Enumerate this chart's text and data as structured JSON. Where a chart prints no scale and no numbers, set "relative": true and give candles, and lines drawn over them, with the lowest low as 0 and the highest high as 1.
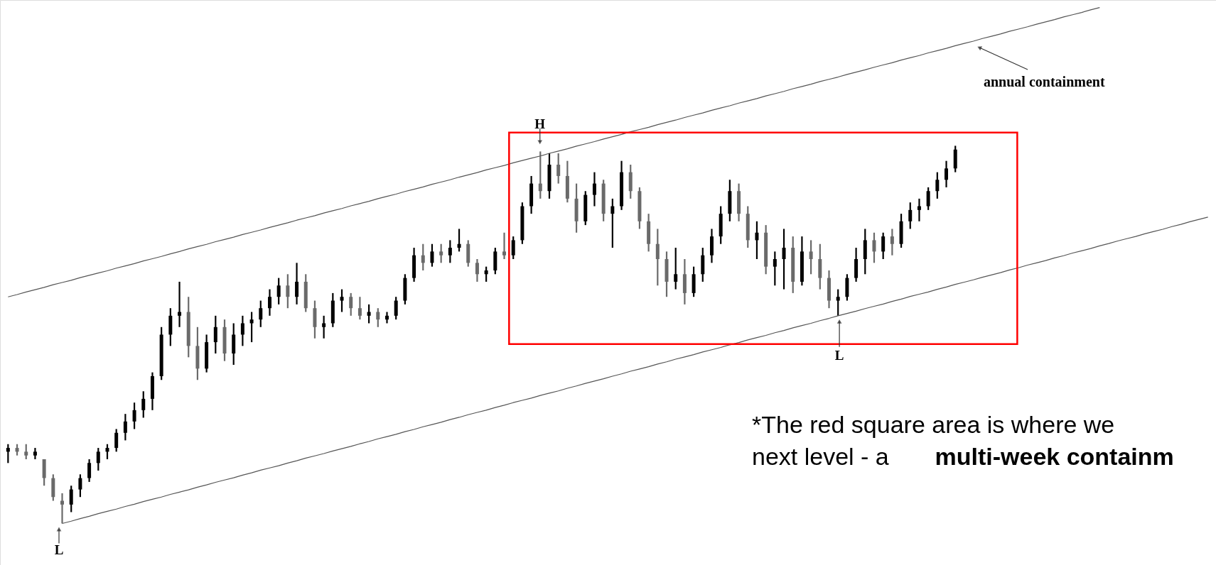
{
  "chart_data": {
    "type": "candlestick",
    "relative": true,
    "categories": [
      null,
      null,
      null,
      null,
      null,
      null,
      null,
      null,
      null,
      null,
      null,
      null,
      null,
      null,
      null,
      null,
      null,
      null,
      null,
      null,
      null,
      null,
      null,
      null,
      null,
      null,
      null,
      null,
      null,
      null,
      null,
      null,
      null,
      null,
      null,
      null,
      null,
      null,
      null,
      null,
      null,
      null,
      null,
      null,
      null,
      null,
      null,
      null,
      null,
      null,
      null,
      null,
      null,
      null,
      null,
      null,
      null,
      null,
      null,
      null,
      null,
      null,
      null,
      null,
      null,
      null,
      null,
      null,
      null,
      null,
      null,
      null,
      null,
      null,
      null,
      null,
      null,
      null,
      null,
      null,
      null,
      null,
      null,
      null,
      null,
      null,
      null,
      null,
      null,
      null,
      null,
      null,
      null,
      null,
      null,
      null,
      null,
      null,
      null,
      null,
      null,
      null,
      null,
      null,
      null,
      null,
      null,
      null,
      null,
      null,
      null,
      null,
      null,
      null,
      null,
      null,
      null,
      null,
      null,
      null,
      null,
      null,
      null,
      null,
      null,
      null,
      null,
      null,
      null,
      null,
      null,
      null,
      null,
      null
    ],
    "ohlc": [
      [
        0.19,
        0.21,
        0.16,
        0.2
      ],
      [
        0.2,
        0.21,
        0.18,
        0.19
      ],
      [
        0.19,
        0.21,
        0.17,
        0.18
      ],
      [
        0.18,
        0.2,
        0.17,
        0.19
      ],
      [
        0.17,
        0.17,
        0.1,
        0.12
      ],
      [
        0.12,
        0.13,
        0.06,
        0.07
      ],
      [
        0.06,
        0.08,
        0.0,
        0.05
      ],
      [
        0.05,
        0.1,
        0.03,
        0.09
      ],
      [
        0.09,
        0.13,
        0.07,
        0.12
      ],
      [
        0.12,
        0.17,
        0.11,
        0.16
      ],
      [
        0.16,
        0.2,
        0.14,
        0.19
      ],
      [
        0.19,
        0.21,
        0.17,
        0.2
      ],
      [
        0.2,
        0.25,
        0.19,
        0.24
      ],
      [
        0.24,
        0.29,
        0.22,
        0.27
      ],
      [
        0.27,
        0.32,
        0.25,
        0.3
      ],
      [
        0.3,
        0.35,
        0.28,
        0.33
      ],
      [
        0.33,
        0.4,
        0.3,
        0.39
      ],
      [
        0.39,
        0.52,
        0.38,
        0.5
      ],
      [
        0.5,
        0.57,
        0.47,
        0.55
      ],
      [
        0.55,
        0.64,
        0.52,
        0.56
      ],
      [
        0.56,
        0.6,
        0.44,
        0.47
      ],
      [
        0.47,
        0.52,
        0.38,
        0.41
      ],
      [
        0.41,
        0.5,
        0.4,
        0.48
      ],
      [
        0.48,
        0.55,
        0.45,
        0.52
      ],
      [
        0.52,
        0.54,
        0.43,
        0.45
      ],
      [
        0.45,
        0.53,
        0.42,
        0.5
      ],
      [
        0.5,
        0.55,
        0.47,
        0.53
      ],
      [
        0.53,
        0.56,
        0.48,
        0.54
      ],
      [
        0.54,
        0.59,
        0.52,
        0.57
      ],
      [
        0.57,
        0.62,
        0.55,
        0.6
      ],
      [
        0.6,
        0.65,
        0.58,
        0.63
      ],
      [
        0.63,
        0.66,
        0.57,
        0.6
      ],
      [
        0.6,
        0.69,
        0.58,
        0.64
      ],
      [
        0.64,
        0.66,
        0.56,
        0.57
      ],
      [
        0.57,
        0.59,
        0.49,
        0.52
      ],
      [
        0.52,
        0.55,
        0.49,
        0.53
      ],
      [
        0.53,
        0.61,
        0.52,
        0.59
      ],
      [
        0.59,
        0.62,
        0.56,
        0.6
      ],
      [
        0.6,
        0.61,
        0.55,
        0.57
      ],
      [
        0.57,
        0.6,
        0.54,
        0.55
      ],
      [
        0.55,
        0.58,
        0.53,
        0.56
      ],
      [
        0.56,
        0.57,
        0.52,
        0.54
      ],
      [
        0.54,
        0.56,
        0.53,
        0.55
      ],
      [
        0.55,
        0.6,
        0.54,
        0.59
      ],
      [
        0.59,
        0.66,
        0.58,
        0.65
      ],
      [
        0.65,
        0.73,
        0.64,
        0.71
      ],
      [
        0.71,
        0.74,
        0.67,
        0.69
      ],
      [
        0.69,
        0.74,
        0.68,
        0.72
      ],
      [
        0.72,
        0.74,
        0.69,
        0.71
      ],
      [
        0.71,
        0.75,
        0.69,
        0.73
      ],
      [
        0.73,
        0.78,
        0.72,
        0.74
      ],
      [
        0.74,
        0.75,
        0.68,
        0.69
      ],
      [
        0.69,
        0.7,
        0.64,
        0.66
      ],
      [
        0.66,
        0.68,
        0.64,
        0.67
      ],
      [
        0.67,
        0.73,
        0.66,
        0.72
      ],
      [
        0.72,
        0.77,
        0.7,
        0.71
      ],
      [
        0.71,
        0.76,
        0.7,
        0.75
      ],
      [
        0.75,
        0.85,
        0.74,
        0.84
      ],
      [
        0.84,
        0.92,
        0.82,
        0.9
      ],
      [
        0.9,
        0.985,
        0.86,
        0.88
      ],
      [
        0.88,
        0.98,
        0.86,
        0.95
      ],
      [
        0.95,
        0.98,
        0.9,
        0.92
      ],
      [
        0.92,
        0.96,
        0.85,
        0.86
      ],
      [
        0.86,
        0.9,
        0.77,
        0.8
      ],
      [
        0.8,
        0.88,
        0.79,
        0.87
      ],
      [
        0.87,
        0.93,
        0.84,
        0.9
      ],
      [
        0.9,
        0.91,
        0.8,
        0.82
      ],
      [
        0.82,
        0.86,
        0.73,
        0.84
      ],
      [
        0.84,
        0.96,
        0.83,
        0.93
      ],
      [
        0.93,
        0.95,
        0.86,
        0.88
      ],
      [
        0.88,
        0.89,
        0.78,
        0.8
      ],
      [
        0.8,
        0.82,
        0.72,
        0.74
      ],
      [
        0.74,
        0.78,
        0.63,
        0.7
      ],
      [
        0.7,
        0.72,
        0.6,
        0.64
      ],
      [
        0.64,
        0.73,
        0.62,
        0.66
      ],
      [
        0.66,
        0.7,
        0.58,
        0.61
      ],
      [
        0.61,
        0.68,
        0.6,
        0.66
      ],
      [
        0.66,
        0.73,
        0.64,
        0.71
      ],
      [
        0.71,
        0.78,
        0.69,
        0.76
      ],
      [
        0.76,
        0.84,
        0.74,
        0.82
      ],
      [
        0.82,
        0.91,
        0.8,
        0.88
      ],
      [
        0.88,
        0.9,
        0.8,
        0.82
      ],
      [
        0.82,
        0.84,
        0.73,
        0.75
      ],
      [
        0.75,
        0.8,
        0.7,
        0.77
      ],
      [
        0.77,
        0.79,
        0.66,
        0.68
      ],
      [
        0.68,
        0.72,
        0.63,
        0.7
      ],
      [
        0.7,
        0.78,
        0.62,
        0.73
      ],
      [
        0.73,
        0.76,
        0.61,
        0.64
      ],
      [
        0.64,
        0.76,
        0.63,
        0.72
      ],
      [
        0.72,
        0.75,
        0.66,
        0.7
      ],
      [
        0.7,
        0.74,
        0.62,
        0.65
      ],
      [
        0.65,
        0.67,
        0.57,
        0.59
      ],
      [
        0.59,
        0.62,
        0.55,
        0.6
      ],
      [
        0.6,
        0.66,
        0.59,
        0.65
      ],
      [
        0.65,
        0.73,
        0.64,
        0.7
      ],
      [
        0.7,
        0.78,
        0.66,
        0.75
      ],
      [
        0.75,
        0.77,
        0.69,
        0.72
      ],
      [
        0.72,
        0.77,
        0.7,
        0.76
      ],
      [
        0.76,
        0.78,
        0.71,
        0.74
      ],
      [
        0.74,
        0.82,
        0.73,
        0.8
      ],
      [
        0.8,
        0.85,
        0.78,
        0.83
      ],
      [
        0.83,
        0.86,
        0.8,
        0.84
      ],
      [
        0.84,
        0.89,
        0.83,
        0.88
      ],
      [
        0.88,
        0.93,
        0.86,
        0.91
      ],
      [
        0.91,
        0.96,
        0.89,
        0.94
      ],
      [
        0.94,
        1.0,
        0.93,
        0.99
      ],
      null,
      null,
      null,
      null,
      null,
      null,
      null,
      null,
      null,
      null,
      null,
      null,
      null,
      null,
      null,
      null,
      null,
      null,
      null,
      null,
      null,
      null,
      null,
      null,
      null,
      null,
      null,
      null
    ],
    "series": [
      {
        "type": "line",
        "color": "#555555",
        "values": [
          0.6,
          0.606,
          0.613,
          0.619,
          0.625,
          0.632,
          0.638,
          0.644,
          0.651,
          0.657,
          0.663,
          0.669,
          0.676,
          0.682,
          0.688,
          0.695,
          0.701,
          0.707,
          0.714,
          0.72,
          0.727,
          0.733,
          0.739,
          0.746,
          0.752,
          0.758,
          0.765,
          0.771,
          0.777,
          0.784,
          0.79,
          0.796,
          0.803,
          0.809,
          0.815,
          0.822,
          0.828,
          0.834,
          0.841,
          0.847,
          0.853,
          0.86,
          0.866,
          0.872,
          0.879,
          0.885,
          0.891,
          0.898,
          0.904,
          0.91,
          0.917,
          0.923,
          0.929,
          0.936,
          0.942,
          0.948,
          0.955,
          0.961,
          0.967,
          0.973,
          0.98,
          0.986,
          0.992,
          0.999,
          1.005,
          1.011,
          1.018,
          1.024,
          1.03,
          1.037,
          1.043,
          1.049,
          1.056,
          1.062,
          1.068,
          1.075,
          1.081,
          1.087,
          1.094,
          1.1,
          1.106,
          1.113,
          1.119,
          1.125,
          1.132,
          1.138,
          1.144,
          1.151,
          1.157,
          1.163,
          1.17,
          1.176,
          1.182,
          1.189,
          1.195,
          1.201,
          1.208,
          1.214,
          1.22,
          1.227,
          1.233,
          1.239,
          1.246,
          1.252,
          1.258,
          1.265,
          1.271,
          1.277,
          1.284,
          1.29,
          1.296,
          1.303,
          1.309,
          1.315,
          1.322,
          1.328,
          1.334,
          1.341,
          1.347,
          1.353,
          1.36,
          1.366,
          null,
          null,
          null,
          null,
          null,
          null,
          null,
          null,
          null,
          null,
          null,
          null
        ]
      },
      {
        "type": "line",
        "color": "#555555",
        "values": [
          null,
          null,
          null,
          null,
          null,
          null,
          0.0,
          0.006,
          0.013,
          0.019,
          0.026,
          0.032,
          0.038,
          0.045,
          0.051,
          0.058,
          0.064,
          0.07,
          0.077,
          0.083,
          0.089,
          0.096,
          0.102,
          0.109,
          0.115,
          0.121,
          0.128,
          0.134,
          0.141,
          0.147,
          0.153,
          0.16,
          0.166,
          0.173,
          0.179,
          0.185,
          0.192,
          0.198,
          0.204,
          0.211,
          0.217,
          0.224,
          0.23,
          0.236,
          0.243,
          0.249,
          0.256,
          0.262,
          0.268,
          0.275,
          0.281,
          0.288,
          0.294,
          0.3,
          0.307,
          0.313,
          0.32,
          0.326,
          0.332,
          0.339,
          0.345,
          0.351,
          0.358,
          0.364,
          0.371,
          0.377,
          0.383,
          0.39,
          0.396,
          0.403,
          0.409,
          0.415,
          0.422,
          0.428,
          0.435,
          0.441,
          0.447,
          0.454,
          0.46,
          0.466,
          0.473,
          0.479,
          0.486,
          0.492,
          0.498,
          0.505,
          0.511,
          0.518,
          0.524,
          0.53,
          0.537,
          0.543,
          0.55,
          0.556,
          0.562,
          0.569,
          0.575,
          0.581,
          0.588,
          0.594,
          0.601,
          0.607,
          0.613,
          0.62,
          0.626,
          0.633,
          0.639,
          0.645,
          0.652,
          0.658,
          0.664,
          0.671,
          0.677,
          0.684,
          0.69,
          0.696,
          0.703,
          0.709,
          0.716,
          0.722,
          0.728,
          0.735,
          0.741,
          0.748,
          0.754,
          0.76,
          0.767,
          0.773,
          0.779,
          0.786,
          0.792,
          0.799,
          0.805,
          0.811
        ]
      }
    ],
    "annotations": [
      "H",
      "L",
      "L",
      "annual containment",
      "*The red square area is where we",
      "next level - a",
      "multi-week containm"
    ]
  }
}
